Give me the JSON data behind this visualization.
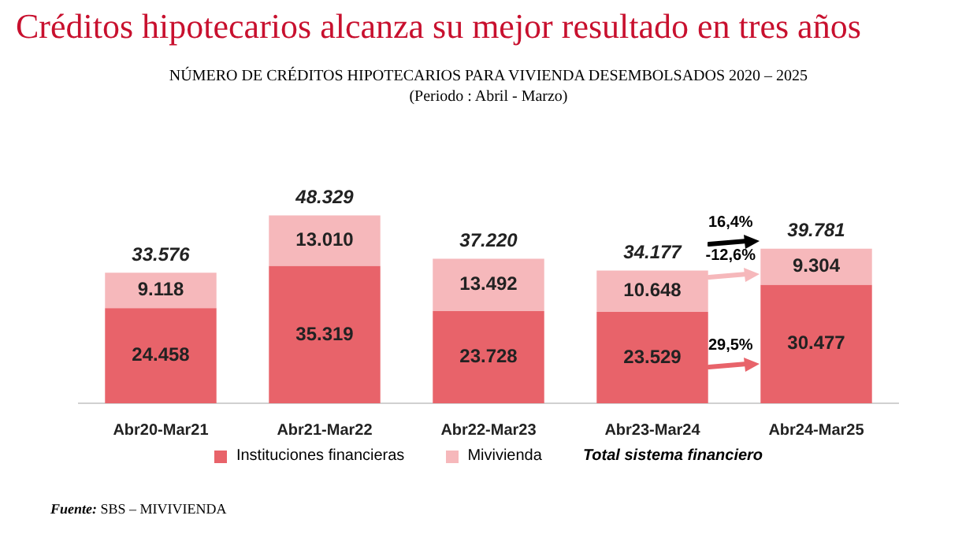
{
  "chart_data": {
    "type": "bar",
    "title": "Créditos hipotecarios alcanza su mejor resultado en tres años",
    "subtitle": "NÚMERO DE CRÉDITOS HIPOTECARIOS PARA VIVIENDA DESEMBOLSADOS 2020 – 2025\n(Periodo :  Abril - Marzo)",
    "categories": [
      "Abr20-Mar21",
      "Abr21-Mar22",
      "Abr22-Mar23",
      "Abr23-Mar24",
      "Abr24-Mar25"
    ],
    "stacked": true,
    "legend": "bottom",
    "series": [
      {
        "name": "Instituciones financieras",
        "color": "#e8636a",
        "values": [
          24458,
          35319,
          23728,
          23529,
          30477
        ],
        "value_labels": [
          "24.458",
          "35.319",
          "23.728",
          "23.529",
          "30.477"
        ]
      },
      {
        "name": "Mivivienda",
        "color": "#f6b8bb",
        "values": [
          9118,
          13010,
          13492,
          10648,
          9304
        ],
        "value_labels": [
          "9.118",
          "13.010",
          "13.492",
          "10.648",
          "9.304"
        ]
      }
    ],
    "totals": [
      "33.576",
      "48.329",
      "37.220",
      "34.177",
      "39.781"
    ],
    "annotations": [
      "Total sistema financiero",
      "Fuente: SBS – MIVIVIENDA",
      "16,4%",
      "-12,6%",
      "29,5%"
    ]
  }
}
